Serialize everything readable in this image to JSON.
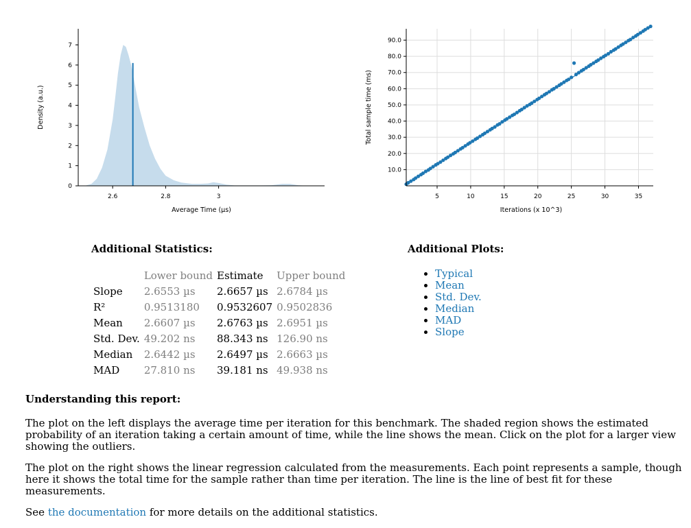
{
  "chart_data": [
    {
      "type": "area",
      "xlabel": "Average Time (µs)",
      "ylabel": "Density (a.u.)",
      "xlim": [
        2.47,
        3.4
      ],
      "ylim": [
        0,
        7.8
      ],
      "x_ticks": [
        "2.6",
        "2.8",
        "3"
      ],
      "x_tick_values": [
        2.6,
        2.8,
        3.0
      ],
      "y_ticks": [
        "0",
        "1",
        "2",
        "3",
        "4",
        "5",
        "6",
        "7"
      ],
      "y_tick_values": [
        0,
        1,
        2,
        3,
        4,
        5,
        6,
        7
      ],
      "density_x": [
        2.5,
        2.52,
        2.54,
        2.56,
        2.58,
        2.6,
        2.61,
        2.62,
        2.63,
        2.64,
        2.65,
        2.66,
        2.67,
        2.68,
        2.69,
        2.7,
        2.72,
        2.74,
        2.76,
        2.78,
        2.8,
        2.83,
        2.86,
        2.9,
        2.93,
        2.96,
        2.98,
        3.0,
        3.03,
        3.06,
        3.1,
        3.15,
        3.2,
        3.24,
        3.27,
        3.3,
        3.33
      ],
      "density_y": [
        0.02,
        0.1,
        0.35,
        0.9,
        1.8,
        3.3,
        4.4,
        5.6,
        6.5,
        7.0,
        6.9,
        6.5,
        6.0,
        5.3,
        4.6,
        3.9,
        2.9,
        2.0,
        1.35,
        0.85,
        0.5,
        0.28,
        0.16,
        0.1,
        0.1,
        0.12,
        0.18,
        0.14,
        0.06,
        0.02,
        0.02,
        0.02,
        0.03,
        0.1,
        0.1,
        0.03,
        0.01
      ],
      "mean": 2.6763,
      "mean_line_top": 6.1,
      "colors": {
        "fill": "#c6dcec",
        "line": "#1f78b4"
      }
    },
    {
      "type": "scatter",
      "xlabel": "Iterations (x 10^3)",
      "ylabel": "Total sample time (ms)",
      "xlim": [
        0.4,
        37.2
      ],
      "ylim": [
        0,
        97
      ],
      "x_ticks": [
        "5",
        "10",
        "15",
        "20",
        "25",
        "30",
        "35"
      ],
      "x_tick_values": [
        5,
        10,
        15,
        20,
        25,
        30,
        35
      ],
      "y_ticks": [
        "10.0",
        "20.0",
        "30.0",
        "40.0",
        "50.0",
        "60.0",
        "70.0",
        "80.0",
        "90.0"
      ],
      "y_tick_values": [
        10,
        20,
        30,
        40,
        50,
        60,
        70,
        80,
        90
      ],
      "grid": true,
      "regression": {
        "x0": 0.37,
        "y0": 0.99,
        "x1": 36.9,
        "y1": 98.3
      },
      "samples_x": [
        0.4,
        0.7,
        1.1,
        1.5,
        1.8,
        2.2,
        2.6,
        2.9,
        3.3,
        3.7,
        4.0,
        4.4,
        4.8,
        5.1,
        5.5,
        5.9,
        6.3,
        6.6,
        7.0,
        7.4,
        7.7,
        8.1,
        8.5,
        8.8,
        9.2,
        9.6,
        9.9,
        10.3,
        10.7,
        11.0,
        11.4,
        11.8,
        12.1,
        12.5,
        12.9,
        13.2,
        13.6,
        14.0,
        14.3,
        14.7,
        15.1,
        15.4,
        15.8,
        16.2,
        16.5,
        16.9,
        17.3,
        17.6,
        18.0,
        18.4,
        18.8,
        19.1,
        19.5,
        19.9,
        20.2,
        20.6,
        21.0,
        21.3,
        21.7,
        22.1,
        22.4,
        22.8,
        23.2,
        23.5,
        23.9,
        24.3,
        24.6,
        25.0,
        25.4,
        25.7,
        26.1,
        26.5,
        26.8,
        27.2,
        27.6,
        27.9,
        28.3,
        28.7,
        29.0,
        29.4,
        29.8,
        30.1,
        30.5,
        30.9,
        31.3,
        31.6,
        32.0,
        32.4,
        32.7,
        33.1,
        33.5,
        33.8,
        34.2,
        34.6,
        34.9,
        35.3,
        35.7,
        36.0,
        36.4,
        36.8
      ],
      "samples_y": [
        1.0,
        1.9,
        2.9,
        3.9,
        4.8,
        5.9,
        6.9,
        7.8,
        8.9,
        9.8,
        10.7,
        11.8,
        12.9,
        13.7,
        14.7,
        15.8,
        16.9,
        17.7,
        18.8,
        19.8,
        20.6,
        21.7,
        22.8,
        23.6,
        24.7,
        25.8,
        26.6,
        27.6,
        28.7,
        29.5,
        30.6,
        31.6,
        32.5,
        33.5,
        34.6,
        35.4,
        36.4,
        37.6,
        38.3,
        39.5,
        40.6,
        41.4,
        42.4,
        43.5,
        44.2,
        45.3,
        46.4,
        47.2,
        48.3,
        49.4,
        50.3,
        51.1,
        52.2,
        53.3,
        54.1,
        55.2,
        56.3,
        57.1,
        58.1,
        59.3,
        60.0,
        61.1,
        62.1,
        63.0,
        64.0,
        65.1,
        65.8,
        67.0,
        75.8,
        68.8,
        69.9,
        71.0,
        71.8,
        72.9,
        73.9,
        74.8,
        75.8,
        76.9,
        77.7,
        78.8,
        79.8,
        80.6,
        81.6,
        82.8,
        83.8,
        84.6,
        85.7,
        86.8,
        87.6,
        88.6,
        89.7,
        90.4,
        91.6,
        92.6,
        93.5,
        94.5,
        95.6,
        96.5,
        97.5,
        98.5
      ],
      "colors": {
        "point": "#1f78b4",
        "line": "#1f78b4",
        "grid": "#dddddd"
      }
    }
  ],
  "stats": {
    "heading": "Additional Statistics:",
    "columns": [
      "",
      "Lower bound",
      "Estimate",
      "Upper bound"
    ],
    "rows": [
      [
        "Slope",
        "2.6553 µs",
        "2.6657 µs",
        "2.6784 µs"
      ],
      [
        "R²",
        "0.9513180",
        "0.9532607",
        "0.9502836"
      ],
      [
        "Mean",
        "2.6607 µs",
        "2.6763 µs",
        "2.6951 µs"
      ],
      [
        "Std. Dev.",
        "49.202 ns",
        "88.343 ns",
        "126.90 ns"
      ],
      [
        "Median",
        "2.6442 µs",
        "2.6497 µs",
        "2.6663 µs"
      ],
      [
        "MAD",
        "27.810 ns",
        "39.181 ns",
        "49.938 ns"
      ]
    ]
  },
  "plots": {
    "heading": "Additional Plots:",
    "items": [
      "Typical",
      "Mean",
      "Std. Dev.",
      "Median",
      "MAD",
      "Slope"
    ]
  },
  "understanding": {
    "heading": "Understanding this report:",
    "p1": "The plot on the left displays the average time per iteration for this benchmark. The shaded region shows the estimated probability of an iteration taking a certain amount of time, while the line shows the mean. Click on the plot for a larger view showing the outliers.",
    "p2": "The plot on the right shows the linear regression calculated from the measurements. Each point represents a sample, though here it shows the total time for the sample rather than time per iteration. The line is the line of best fit for these measurements.",
    "p3_prefix": "See ",
    "p3_link": "the documentation",
    "p3_suffix": " for more details on the additional statistics."
  }
}
